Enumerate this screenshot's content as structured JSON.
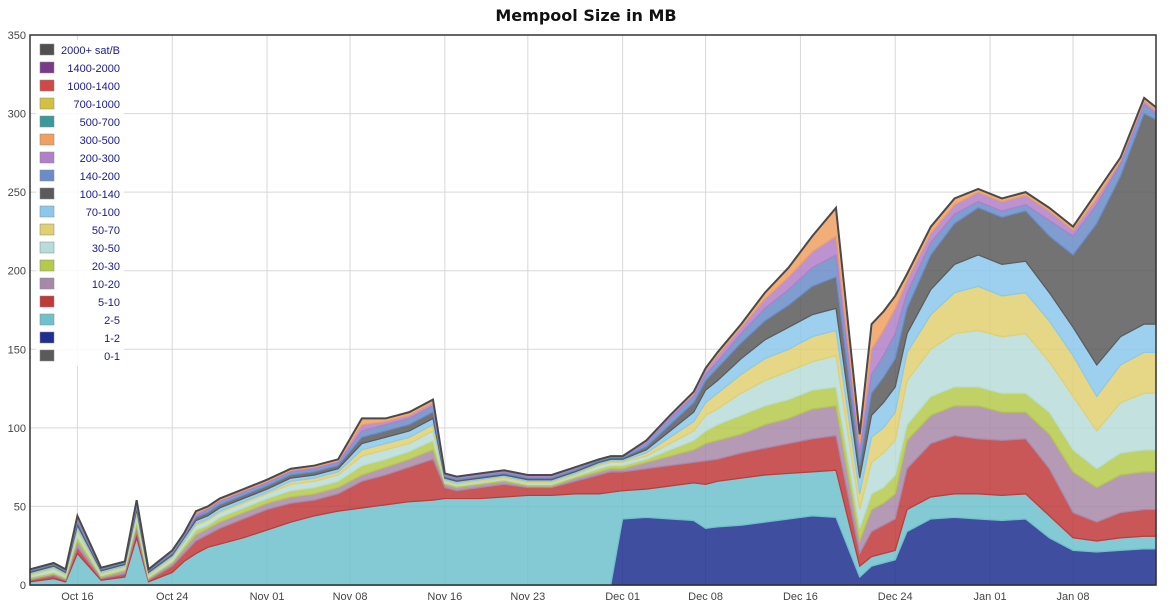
{
  "chart_data": {
    "type": "area",
    "title": "Mempool Size in MB",
    "xlabel": "",
    "ylabel": "",
    "ylim": [
      0,
      350
    ],
    "yticks": [
      0,
      50,
      100,
      150,
      200,
      250,
      300,
      350
    ],
    "xticks": [
      "Oct 16",
      "Oct 24",
      "Nov 01",
      "Nov 08",
      "Nov 16",
      "Nov 23",
      "Dec 01",
      "Dec 08",
      "Dec 16",
      "Dec 24",
      "Jan 01",
      "Jan 08"
    ],
    "xtick_day": [
      4,
      12,
      20,
      27,
      35,
      42,
      50,
      57,
      65,
      73,
      81,
      88
    ],
    "x_range_days": [
      0,
      95
    ],
    "grid": true,
    "legend_position": "top-left",
    "stacking": "cumulative totals (MB), bottom band first",
    "x": [
      0,
      2,
      3,
      4,
      6,
      8,
      9,
      10,
      12,
      13,
      14,
      15,
      16,
      18,
      20,
      22,
      24,
      26,
      28,
      30,
      32,
      34,
      35,
      36,
      38,
      40,
      42,
      44,
      46,
      48,
      49,
      50,
      52,
      54,
      56,
      57,
      58,
      60,
      62,
      64,
      66,
      68,
      70,
      71,
      72,
      73,
      74,
      76,
      78,
      80,
      82,
      84,
      86,
      88,
      90,
      92,
      94,
      95
    ],
    "series": [
      {
        "name": "0-1",
        "color": "#5a5a5a",
        "values": [
          0,
          0,
          0,
          0,
          0,
          0,
          0,
          0,
          0,
          0,
          0,
          0,
          0,
          0,
          0,
          0,
          0,
          0,
          0,
          0,
          0,
          0,
          0,
          0,
          0,
          0,
          0,
          0,
          0,
          0,
          0,
          0,
          0,
          0,
          0,
          0,
          0,
          0,
          0,
          0,
          0,
          0,
          0,
          0,
          0,
          0,
          0,
          0,
          0,
          0,
          0,
          0,
          0,
          0,
          0,
          0,
          0,
          0
        ]
      },
      {
        "name": "1-2",
        "color": "#1f2f8f",
        "values": [
          0,
          0,
          0,
          0,
          0,
          0,
          0,
          0,
          0,
          0,
          0,
          0,
          0,
          0,
          0,
          0,
          0,
          0,
          0,
          0,
          0,
          0,
          0,
          0,
          0,
          0,
          0,
          0,
          0,
          0,
          0,
          42,
          43,
          42,
          41,
          36,
          37,
          38,
          40,
          42,
          44,
          43,
          5,
          12,
          14,
          16,
          34,
          42,
          43,
          42,
          41,
          42,
          30,
          22,
          21,
          22,
          23,
          23
        ]
      },
      {
        "name": "2-5",
        "color": "#6fc1cc",
        "values": [
          2,
          4,
          2,
          20,
          3,
          5,
          30,
          2,
          8,
          15,
          20,
          24,
          26,
          30,
          35,
          40,
          44,
          47,
          49,
          51,
          53,
          54,
          55,
          55,
          55,
          56,
          57,
          57,
          58,
          58,
          59,
          60,
          61,
          63,
          65,
          64,
          66,
          68,
          70,
          71,
          72,
          73,
          12,
          18,
          20,
          22,
          48,
          56,
          58,
          58,
          57,
          58,
          44,
          30,
          28,
          30,
          31,
          31
        ]
      },
      {
        "name": "5-10",
        "color": "#c03a3a",
        "values": [
          3,
          6,
          3,
          24,
          4,
          7,
          34,
          3,
          12,
          20,
          28,
          32,
          36,
          42,
          48,
          52,
          54,
          58,
          66,
          70,
          75,
          80,
          62,
          60,
          62,
          64,
          62,
          62,
          66,
          70,
          72,
          72,
          74,
          76,
          78,
          79,
          80,
          84,
          87,
          90,
          93,
          95,
          20,
          34,
          38,
          42,
          74,
          90,
          95,
          93,
          92,
          93,
          74,
          46,
          40,
          46,
          48,
          48
        ]
      },
      {
        "name": "10-20",
        "color": "#a888a8",
        "values": [
          4,
          7,
          4,
          28,
          5,
          9,
          38,
          4,
          14,
          23,
          32,
          36,
          40,
          46,
          52,
          56,
          58,
          62,
          70,
          75,
          80,
          86,
          64,
          62,
          64,
          66,
          63,
          63,
          68,
          72,
          74,
          74,
          78,
          82,
          86,
          90,
          92,
          96,
          102,
          106,
          112,
          114,
          28,
          48,
          52,
          58,
          92,
          108,
          114,
          114,
          110,
          110,
          96,
          72,
          62,
          70,
          72,
          72
        ]
      },
      {
        "name": "20-30",
        "color": "#b5c94a",
        "values": [
          5,
          8,
          5,
          31,
          6,
          10,
          41,
          5,
          15,
          25,
          35,
          38,
          43,
          49,
          55,
          60,
          62,
          66,
          76,
          80,
          85,
          92,
          65,
          63,
          65,
          67,
          64,
          64,
          69,
          74,
          76,
          76,
          80,
          86,
          92,
          98,
          102,
          108,
          114,
          118,
          124,
          126,
          36,
          58,
          62,
          70,
          102,
          120,
          126,
          126,
          122,
          122,
          110,
          86,
          74,
          84,
          86,
          86
        ]
      },
      {
        "name": "30-50",
        "color": "#b8dcd8",
        "values": [
          6,
          10,
          6,
          34,
          7,
          11,
          44,
          6,
          17,
          27,
          38,
          41,
          46,
          52,
          58,
          64,
          66,
          70,
          82,
          86,
          90,
          98,
          66,
          64,
          66,
          68,
          65,
          65,
          70,
          76,
          78,
          78,
          82,
          90,
          98,
          108,
          112,
          122,
          130,
          136,
          142,
          146,
          48,
          78,
          84,
          92,
          130,
          150,
          160,
          162,
          158,
          160,
          142,
          120,
          98,
          116,
          122,
          122
        ]
      },
      {
        "name": "50-70",
        "color": "#e0d070",
        "values": [
          7,
          11,
          7,
          36,
          8,
          12,
          46,
          7,
          18,
          28,
          39,
          42,
          47,
          53,
          59,
          66,
          68,
          72,
          86,
          90,
          94,
          102,
          67,
          65,
          67,
          69,
          66,
          66,
          71,
          77,
          79,
          79,
          84,
          94,
          104,
          116,
          122,
          134,
          144,
          150,
          158,
          162,
          58,
          94,
          100,
          110,
          148,
          172,
          186,
          190,
          184,
          186,
          168,
          146,
          120,
          140,
          148,
          148
        ]
      },
      {
        "name": "70-100",
        "color": "#8cc8ec",
        "values": [
          8,
          12,
          8,
          38,
          9,
          13,
          48,
          8,
          19,
          30,
          41,
          44,
          49,
          55,
          61,
          68,
          70,
          74,
          90,
          94,
          98,
          106,
          68,
          66,
          68,
          70,
          67,
          67,
          72,
          78,
          80,
          80,
          86,
          98,
          110,
          124,
          130,
          144,
          156,
          164,
          172,
          176,
          68,
          108,
          116,
          126,
          160,
          188,
          204,
          210,
          204,
          206,
          186,
          164,
          140,
          158,
          166,
          166
        ]
      },
      {
        "name": "100-140",
        "color": "#5a5a5a",
        "values": [
          9,
          13,
          9,
          40,
          10,
          14,
          50,
          9,
          20,
          31,
          43,
          46,
          51,
          57,
          63,
          70,
          72,
          76,
          94,
          98,
          102,
          110,
          69,
          67,
          69,
          71,
          68,
          68,
          73,
          79,
          81,
          81,
          88,
          102,
          116,
          130,
          138,
          154,
          168,
          178,
          190,
          196,
          76,
          122,
          132,
          144,
          176,
          210,
          230,
          240,
          234,
          238,
          222,
          210,
          230,
          260,
          300,
          296
        ]
      },
      {
        "name": "140-200",
        "color": "#6a8cc8",
        "values": [
          10,
          14,
          10,
          42,
          11,
          15,
          52,
          10,
          21,
          32,
          44,
          48,
          53,
          59,
          65,
          72,
          74,
          78,
          98,
          102,
          106,
          114,
          70,
          68,
          70,
          72,
          69,
          69,
          74,
          80,
          82,
          82,
          90,
          106,
          120,
          134,
          142,
          160,
          176,
          188,
          202,
          210,
          84,
          134,
          146,
          160,
          186,
          218,
          236,
          244,
          238,
          242,
          232,
          222,
          242,
          268,
          306,
          300
        ]
      },
      {
        "name": "200-300",
        "color": "#b080c8",
        "values": [
          10,
          14,
          10,
          43,
          11,
          15,
          53,
          10,
          22,
          33,
          46,
          49,
          54,
          60,
          66,
          73,
          75,
          79,
          102,
          104,
          108,
          116,
          71,
          69,
          71,
          73,
          70,
          70,
          75,
          80,
          82,
          82,
          92,
          108,
          122,
          137,
          146,
          164,
          182,
          196,
          212,
          222,
          90,
          150,
          162,
          176,
          194,
          224,
          242,
          250,
          244,
          248,
          238,
          226,
          246,
          270,
          308,
          302
        ]
      },
      {
        "name": "300-500",
        "color": "#f0a060",
        "values": [
          10,
          14,
          10,
          44,
          11,
          15,
          54,
          10,
          22,
          33,
          47,
          50,
          55,
          61,
          67,
          74,
          76,
          80,
          106,
          106,
          110,
          118,
          71,
          69,
          71,
          73,
          70,
          70,
          75,
          80,
          82,
          82,
          92,
          108,
          123,
          138,
          148,
          166,
          186,
          202,
          222,
          240,
          96,
          166,
          174,
          184,
          198,
          228,
          246,
          252,
          246,
          250,
          240,
          228,
          250,
          272,
          310,
          304
        ]
      },
      {
        "name": "500-700",
        "color": "#3a9a9a",
        "values": [
          10,
          14,
          10,
          44,
          11,
          15,
          54,
          10,
          22,
          33,
          47,
          50,
          55,
          61,
          67,
          74,
          76,
          80,
          106,
          106,
          110,
          118,
          71,
          69,
          71,
          73,
          70,
          70,
          75,
          80,
          82,
          82,
          92,
          108,
          123,
          138,
          148,
          166,
          186,
          202,
          222,
          240,
          96,
          166,
          174,
          184,
          198,
          228,
          246,
          252,
          246,
          250,
          240,
          228,
          250,
          272,
          310,
          304
        ]
      },
      {
        "name": "700-1000",
        "color": "#d4c040",
        "values": [
          10,
          14,
          10,
          44,
          11,
          15,
          54,
          10,
          22,
          33,
          47,
          50,
          55,
          61,
          67,
          74,
          76,
          80,
          106,
          106,
          110,
          118,
          71,
          69,
          71,
          73,
          70,
          70,
          75,
          80,
          82,
          82,
          92,
          108,
          123,
          138,
          148,
          166,
          186,
          202,
          222,
          240,
          96,
          166,
          174,
          184,
          198,
          228,
          246,
          252,
          246,
          250,
          240,
          228,
          250,
          272,
          310,
          304
        ]
      },
      {
        "name": "1000-1400",
        "color": "#d04848",
        "values": [
          10,
          14,
          10,
          44,
          11,
          15,
          54,
          10,
          22,
          33,
          47,
          50,
          55,
          61,
          67,
          74,
          76,
          80,
          106,
          106,
          110,
          118,
          71,
          69,
          71,
          73,
          70,
          70,
          75,
          80,
          82,
          82,
          92,
          108,
          123,
          138,
          148,
          166,
          186,
          202,
          222,
          240,
          96,
          166,
          174,
          184,
          198,
          228,
          246,
          252,
          246,
          250,
          240,
          228,
          250,
          272,
          310,
          304
        ]
      },
      {
        "name": "1400-2000",
        "color": "#7a3a8a",
        "values": [
          10,
          14,
          10,
          44,
          11,
          15,
          54,
          10,
          22,
          33,
          47,
          50,
          55,
          61,
          67,
          74,
          76,
          80,
          106,
          106,
          110,
          118,
          71,
          69,
          71,
          73,
          70,
          70,
          75,
          80,
          82,
          82,
          92,
          108,
          123,
          138,
          148,
          166,
          186,
          202,
          222,
          240,
          96,
          166,
          174,
          184,
          198,
          228,
          246,
          252,
          246,
          250,
          240,
          228,
          250,
          272,
          310,
          304
        ]
      },
      {
        "name": "2000+ sat/B",
        "color": "#505050",
        "values": [
          10,
          14,
          10,
          44,
          11,
          15,
          54,
          10,
          22,
          33,
          47,
          50,
          55,
          61,
          67,
          74,
          76,
          80,
          106,
          106,
          110,
          118,
          71,
          69,
          71,
          73,
          70,
          70,
          75,
          80,
          82,
          82,
          92,
          108,
          123,
          138,
          148,
          166,
          186,
          202,
          222,
          240,
          96,
          166,
          174,
          184,
          198,
          228,
          246,
          252,
          246,
          250,
          240,
          228,
          250,
          272,
          310,
          304
        ]
      }
    ]
  },
  "legend_order": [
    "2000+ sat/B",
    "1400-2000",
    "1000-1400",
    "700-1000",
    "500-700",
    "300-500",
    "200-300",
    "140-200",
    "100-140",
    "70-100",
    "50-70",
    "30-50",
    "20-30",
    "10-20",
    "5-10",
    "2-5",
    "1-2",
    "0-1"
  ]
}
